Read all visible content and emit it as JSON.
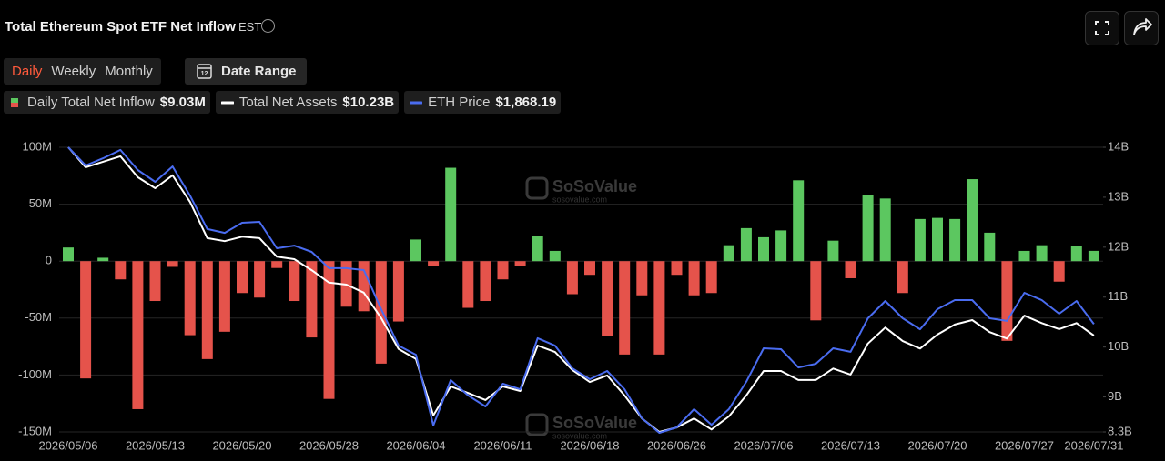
{
  "header": {
    "title": "Total Ethereum Spot ETF Net Inflow",
    "timezone": "EST"
  },
  "tabs": [
    "Daily",
    "Weekly",
    "Monthly"
  ],
  "active_tab": 0,
  "date_range": "Date Range",
  "watermark": {
    "name": "SoSoValue",
    "url": "sosovalue.com"
  },
  "chart_data": {
    "type": "bar",
    "categories": [
      "2026/05/06",
      null,
      null,
      null,
      null,
      "2026/05/13",
      null,
      null,
      null,
      null,
      "2026/05/20",
      null,
      null,
      null,
      null,
      "2026/05/28",
      null,
      null,
      null,
      null,
      "2026/06/04",
      null,
      null,
      null,
      null,
      "2026/06/11",
      null,
      null,
      null,
      null,
      "2026/06/18",
      null,
      null,
      null,
      null,
      "2026/06/26",
      null,
      null,
      null,
      null,
      "2026/07/06",
      null,
      null,
      null,
      null,
      "2026/07/13",
      null,
      null,
      null,
      null,
      "2026/07/20",
      null,
      null,
      null,
      null,
      "2026/07/27",
      null,
      null,
      null,
      "2026/07/31"
    ],
    "series": [
      {
        "name": "Daily Total Net Inflow",
        "type": "bar",
        "color": "#5cc760",
        "negative_color": "#e5534b",
        "legend_value": "$9.03M",
        "values": [
          12,
          -103,
          3,
          -16,
          -130,
          -35,
          -5,
          -65,
          -86,
          -62,
          -28,
          -32,
          -6,
          -35,
          -67,
          -121,
          -40,
          -44,
          -90,
          -53,
          19,
          -4,
          82,
          -41,
          -35,
          -16,
          -4,
          22,
          9,
          -29,
          -12,
          -66,
          -82,
          -30,
          -82,
          -12,
          -30,
          -28,
          14,
          29,
          21,
          27,
          71,
          -52,
          18,
          -15,
          58,
          55,
          -28,
          37,
          38,
          37,
          72,
          25,
          -70,
          9,
          14,
          -18,
          13,
          9.03
        ]
      },
      {
        "name": "Total Net Assets",
        "type": "line",
        "axis": "y2",
        "color": "#ffffff",
        "legend_value": "$10.23B",
        "values": [
          14.0,
          13.6,
          13.71,
          13.82,
          13.4,
          13.18,
          13.44,
          12.91,
          12.18,
          12.12,
          12.21,
          12.18,
          11.81,
          11.76,
          11.54,
          11.29,
          11.25,
          11.09,
          10.58,
          9.96,
          9.76,
          8.63,
          9.21,
          9.08,
          8.94,
          9.21,
          9.12,
          10.03,
          9.9,
          9.54,
          9.3,
          9.43,
          9.03,
          8.57,
          8.3,
          8.39,
          8.57,
          8.35,
          8.61,
          9.03,
          9.52,
          9.52,
          9.34,
          9.34,
          9.57,
          9.45,
          10.07,
          10.39,
          10.12,
          9.97,
          10.25,
          10.45,
          10.54,
          10.3,
          10.17,
          10.63,
          10.48,
          10.36,
          10.48,
          10.23
        ]
      },
      {
        "name": "ETH Price",
        "type": "line",
        "axis": "y3",
        "color": "#4a6cf0",
        "legend_value": "$1,868.19",
        "values": [
          2800,
          2704,
          2742,
          2786,
          2680,
          2618,
          2699,
          2546,
          2369,
          2349,
          2402,
          2407,
          2268,
          2282,
          2249,
          2163,
          2163,
          2153,
          1947,
          1755,
          1707,
          1334,
          1573,
          1492,
          1434,
          1554,
          1525,
          1794,
          1755,
          1635,
          1578,
          1621,
          1525,
          1372,
          1295,
          1324,
          1420,
          1338,
          1420,
          1564,
          1741,
          1736,
          1640,
          1659,
          1741,
          1722,
          1899,
          1990,
          1899,
          1841,
          1947,
          1995,
          1995,
          1899,
          1885,
          2033,
          1995,
          1923,
          1990,
          1868.19
        ]
      }
    ],
    "ylim": [
      -150,
      100
    ],
    "yticks": [
      {
        "value": 100,
        "label": "100M"
      },
      {
        "value": 50,
        "label": "50M"
      },
      0,
      {
        "value": -50,
        "label": "-50M"
      },
      {
        "value": -100,
        "label": "-100M"
      },
      {
        "value": -150,
        "label": "-150M"
      }
    ],
    "y2lim": [
      8.3,
      14
    ],
    "y2ticks": [
      {
        "value": 14,
        "label": "14B"
      },
      {
        "value": 13,
        "label": "13B"
      },
      {
        "value": 12,
        "label": "12B"
      },
      {
        "value": 11,
        "label": "11B"
      },
      {
        "value": 10,
        "label": "10B"
      },
      {
        "value": 9,
        "label": "9B"
      },
      {
        "value": 8.3,
        "label": "8.3B"
      }
    ],
    "y3lim": [
      1300,
      2800
    ],
    "grid": true
  }
}
